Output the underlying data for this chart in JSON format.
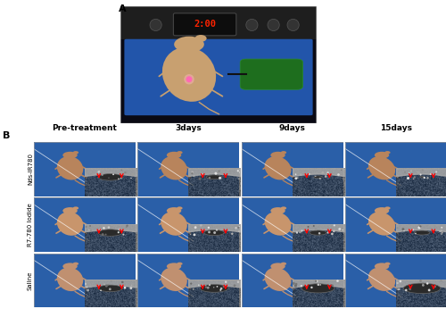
{
  "fig_width": 5.0,
  "fig_height": 3.46,
  "dpi": 100,
  "background_color": "#ffffff",
  "panel_A_label": "A",
  "panel_B_label": "B",
  "col_labels": [
    "Pre-treatment",
    "3days",
    "9days",
    "15days"
  ],
  "row_labels": [
    "Nds-IR780",
    "R7-780 Iodide",
    "Saline"
  ],
  "mouse_color_light": "#c8956c",
  "mouse_color_dark": "#a07050",
  "blue_mat_color": "#2a5fa8",
  "dark_bg": "#111111",
  "ultrasound_bg": "#0a0a0a",
  "arrow_color": "#dd0000",
  "col_label_fontsize": 6.5,
  "row_label_fontsize": 5.0,
  "panel_label_fontsize": 8,
  "display_bg": "#1a1a1a",
  "display_red": "#cc2200",
  "cell_border_color": "#cccccc"
}
